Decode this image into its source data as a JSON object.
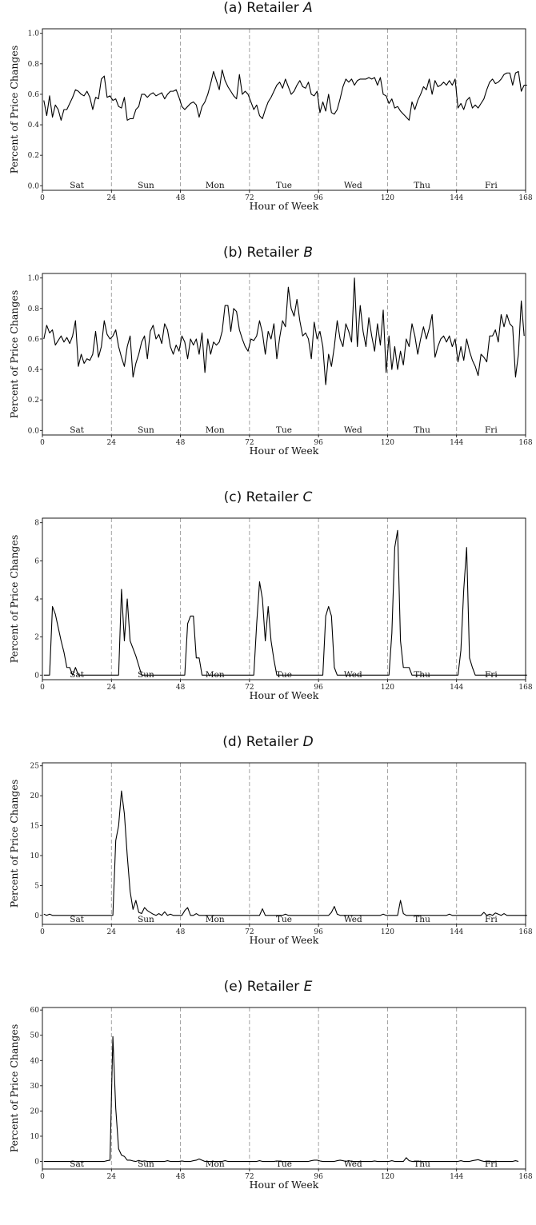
{
  "shared": {
    "ylabel": "Percent of Price Changes",
    "xlabel": "Hour of Week"
  },
  "chart_data": [
    {
      "type": "line",
      "title": "(a) Retailer ",
      "title_letter": "A",
      "xlabel": "Hour of Week",
      "ylabel": "Percent of Price Changes",
      "xlim": [
        0,
        168
      ],
      "ylim": [
        -0.03,
        1.03
      ],
      "xticks": [
        0,
        24,
        48,
        72,
        96,
        120,
        144,
        168
      ],
      "yticks": [
        0.0,
        0.2,
        0.4,
        0.6,
        0.8,
        1.0
      ],
      "ytick_labels": [
        "0.0",
        "0.2",
        "0.4",
        "0.6",
        "0.8",
        "1.0"
      ],
      "day_labels": [
        "Sat",
        "Sun",
        "Mon",
        "Tue",
        "Wed",
        "Thu",
        "Fri"
      ],
      "day_dividers": [
        24,
        48,
        72,
        96,
        120,
        144
      ],
      "grid": false,
      "values": [
        0.56,
        0.46,
        0.59,
        0.45,
        0.53,
        0.5,
        0.43,
        0.5,
        0.5,
        0.54,
        0.58,
        0.63,
        0.62,
        0.6,
        0.59,
        0.62,
        0.58,
        0.5,
        0.58,
        0.57,
        0.7,
        0.72,
        0.58,
        0.59,
        0.56,
        0.57,
        0.52,
        0.51,
        0.58,
        0.43,
        0.44,
        0.44,
        0.5,
        0.52,
        0.6,
        0.6,
        0.58,
        0.6,
        0.61,
        0.59,
        0.6,
        0.61,
        0.57,
        0.6,
        0.62,
        0.62,
        0.63,
        0.58,
        0.52,
        0.5,
        0.52,
        0.54,
        0.55,
        0.53,
        0.45,
        0.52,
        0.55,
        0.6,
        0.67,
        0.75,
        0.69,
        0.63,
        0.76,
        0.69,
        0.65,
        0.62,
        0.59,
        0.57,
        0.73,
        0.6,
        0.62,
        0.6,
        0.55,
        0.5,
        0.53,
        0.46,
        0.44,
        0.5,
        0.55,
        0.58,
        0.62,
        0.66,
        0.68,
        0.64,
        0.7,
        0.65,
        0.6,
        0.62,
        0.66,
        0.69,
        0.65,
        0.64,
        0.68,
        0.6,
        0.59,
        0.62,
        0.48,
        0.55,
        0.49,
        0.6,
        0.48,
        0.47,
        0.5,
        0.57,
        0.65,
        0.7,
        0.68,
        0.7,
        0.66,
        0.69,
        0.7,
        0.7,
        0.7,
        0.71,
        0.7,
        0.71,
        0.66,
        0.71,
        0.6,
        0.59,
        0.54,
        0.57,
        0.51,
        0.52,
        0.49,
        0.47,
        0.45,
        0.43,
        0.55,
        0.5,
        0.56,
        0.6,
        0.65,
        0.63,
        0.7,
        0.6,
        0.69,
        0.65,
        0.66,
        0.68,
        0.66,
        0.69,
        0.66,
        0.7,
        0.51,
        0.54,
        0.5,
        0.56,
        0.58,
        0.51,
        0.53,
        0.51,
        0.54,
        0.57,
        0.63,
        0.68,
        0.7,
        0.67,
        0.68,
        0.7,
        0.73,
        0.74,
        0.74,
        0.66,
        0.74,
        0.75,
        0.62,
        0.66,
        0.66
      ]
    },
    {
      "type": "line",
      "title": "(b) Retailer ",
      "title_letter": "B",
      "xlabel": "Hour of Week",
      "ylabel": "Percent of Price Changes",
      "xlim": [
        0,
        168
      ],
      "ylim": [
        -0.03,
        1.03
      ],
      "xticks": [
        0,
        24,
        48,
        72,
        96,
        120,
        144,
        168
      ],
      "yticks": [
        0.0,
        0.2,
        0.4,
        0.6,
        0.8,
        1.0
      ],
      "ytick_labels": [
        "0.0",
        "0.2",
        "0.4",
        "0.6",
        "0.8",
        "1.0"
      ],
      "day_labels": [
        "Sat",
        "Sun",
        "Mon",
        "Tue",
        "Wed",
        "Thu",
        "Fri"
      ],
      "day_dividers": [
        24,
        48,
        72,
        96,
        120,
        144
      ],
      "grid": false,
      "values": [
        0.6,
        0.69,
        0.64,
        0.66,
        0.56,
        0.59,
        0.62,
        0.58,
        0.61,
        0.57,
        0.62,
        0.72,
        0.42,
        0.5,
        0.44,
        0.47,
        0.46,
        0.5,
        0.65,
        0.48,
        0.55,
        0.72,
        0.63,
        0.6,
        0.62,
        0.66,
        0.55,
        0.48,
        0.42,
        0.55,
        0.62,
        0.35,
        0.44,
        0.5,
        0.58,
        0.62,
        0.47,
        0.65,
        0.69,
        0.6,
        0.63,
        0.57,
        0.7,
        0.66,
        0.55,
        0.5,
        0.56,
        0.52,
        0.62,
        0.58,
        0.47,
        0.6,
        0.56,
        0.6,
        0.5,
        0.64,
        0.38,
        0.6,
        0.5,
        0.58,
        0.56,
        0.58,
        0.65,
        0.82,
        0.82,
        0.65,
        0.8,
        0.78,
        0.66,
        0.6,
        0.55,
        0.52,
        0.6,
        0.59,
        0.62,
        0.72,
        0.64,
        0.5,
        0.65,
        0.6,
        0.7,
        0.47,
        0.61,
        0.72,
        0.68,
        0.94,
        0.8,
        0.75,
        0.86,
        0.72,
        0.62,
        0.64,
        0.6,
        0.47,
        0.71,
        0.6,
        0.65,
        0.55,
        0.3,
        0.5,
        0.42,
        0.55,
        0.72,
        0.6,
        0.55,
        0.7,
        0.65,
        0.58,
        1.0,
        0.55,
        0.82,
        0.65,
        0.55,
        0.74,
        0.62,
        0.52,
        0.7,
        0.56,
        0.79,
        0.38,
        0.62,
        0.4,
        0.55,
        0.4,
        0.52,
        0.43,
        0.6,
        0.55,
        0.7,
        0.62,
        0.5,
        0.6,
        0.68,
        0.6,
        0.67,
        0.76,
        0.48,
        0.55,
        0.6,
        0.62,
        0.58,
        0.62,
        0.55,
        0.6,
        0.45,
        0.55,
        0.46,
        0.6,
        0.52,
        0.46,
        0.42,
        0.36,
        0.5,
        0.48,
        0.45,
        0.62,
        0.62,
        0.66,
        0.58,
        0.76,
        0.68,
        0.76,
        0.7,
        0.68,
        0.35,
        0.5,
        0.85,
        0.62
      ]
    },
    {
      "type": "line",
      "title": "(c) Retailer ",
      "title_letter": "C",
      "xlabel": "Hour of Week",
      "ylabel": "Percent of Price Changes",
      "xlim": [
        0,
        168
      ],
      "ylim": [
        -0.24,
        8.24
      ],
      "xticks": [
        0,
        24,
        48,
        72,
        96,
        120,
        144,
        168
      ],
      "yticks": [
        0,
        2,
        4,
        6,
        8
      ],
      "ytick_labels": [
        "0",
        "2",
        "4",
        "6",
        "8"
      ],
      "day_labels": [
        "Sat",
        "Sun",
        "Mon",
        "Tue",
        "Wed",
        "Thu",
        "Fri"
      ],
      "day_dividers": [
        24,
        48,
        72,
        96,
        120,
        144
      ],
      "grid": false,
      "values": [
        0,
        0,
        0,
        3.6,
        3.2,
        2.5,
        1.8,
        1.2,
        0.4,
        0.4,
        0,
        0.4,
        0,
        0,
        0,
        0,
        0,
        0,
        0,
        0,
        0,
        0,
        0,
        0,
        0,
        0,
        0,
        4.5,
        1.8,
        4.0,
        1.8,
        1.4,
        1.0,
        0.5,
        0,
        0,
        0,
        0,
        0,
        0,
        0,
        0,
        0,
        0,
        0,
        0,
        0,
        0,
        0,
        0,
        2.7,
        3.1,
        3.1,
        0.9,
        0.9,
        0,
        0,
        0,
        0,
        0,
        0,
        0,
        0,
        0,
        0,
        0,
        0,
        0,
        0,
        0,
        0,
        0,
        0,
        0,
        2.7,
        4.9,
        4.0,
        1.8,
        3.6,
        1.8,
        0.8,
        0,
        0,
        0,
        0,
        0,
        0,
        0,
        0,
        0,
        0,
        0,
        0,
        0,
        0,
        0,
        0,
        0,
        3.1,
        3.6,
        3.1,
        0.4,
        0,
        0,
        0,
        0,
        0,
        0,
        0,
        0,
        0,
        0,
        0,
        0,
        0,
        0,
        0,
        0,
        0,
        0,
        0,
        2.2,
        6.7,
        7.6,
        1.8,
        0.4,
        0.4,
        0.4,
        0,
        0,
        0,
        0,
        0,
        0,
        0,
        0,
        0,
        0,
        0,
        0,
        0,
        0,
        0,
        0,
        0,
        1.3,
        4.5,
        6.7,
        0.9,
        0.4,
        0,
        0,
        0,
        0,
        0,
        0,
        0,
        0,
        0,
        0,
        0,
        0,
        0,
        0,
        0,
        0,
        0,
        0,
        0
      ]
    },
    {
      "type": "line",
      "title": "(d) Retailer ",
      "title_letter": "D",
      "xlabel": "Hour of Week",
      "ylabel": "Percent of Price Changes",
      "xlim": [
        0,
        168
      ],
      "ylim": [
        -1.5,
        25.5
      ],
      "xticks": [
        0,
        24,
        48,
        72,
        96,
        120,
        144,
        168
      ],
      "yticks": [
        0,
        5,
        10,
        15,
        20,
        25
      ],
      "ytick_labels": [
        "0",
        "5",
        "10",
        "15",
        "20",
        "25"
      ],
      "day_labels": [
        "Sat",
        "Sun",
        "Mon",
        "Tue",
        "Wed",
        "Thu",
        "Fri"
      ],
      "day_dividers": [
        24,
        48,
        72,
        96,
        120,
        144
      ],
      "grid": false,
      "values": [
        0.2,
        0,
        0.2,
        0,
        0,
        0,
        0,
        0,
        0,
        0,
        0,
        0,
        0,
        0,
        0,
        0,
        0,
        0,
        0,
        0,
        0,
        0,
        0,
        0,
        0,
        12.5,
        15,
        20.8,
        17,
        10,
        4,
        1,
        2.5,
        0.5,
        0.3,
        1.3,
        0.8,
        0.5,
        0.2,
        0,
        0.3,
        0,
        0.6,
        0,
        0.2,
        0,
        0,
        0,
        0,
        0.8,
        1.3,
        0,
        0,
        0.3,
        0,
        0,
        0,
        0,
        0,
        0,
        0,
        0,
        0,
        0,
        0,
        0,
        0,
        0,
        0,
        0,
        0,
        0,
        0,
        0,
        0,
        0,
        1.1,
        0,
        0,
        0,
        0,
        0,
        0,
        0,
        0.2,
        0,
        0,
        0,
        0,
        0,
        0,
        0,
        0,
        0,
        0,
        0,
        0,
        0,
        0,
        0,
        0.5,
        1.5,
        0.2,
        0,
        0,
        0,
        0,
        0,
        0,
        0,
        0,
        0,
        0,
        0,
        0,
        0,
        0,
        0,
        0.2,
        0,
        0,
        0,
        0,
        0,
        2.5,
        0.3,
        0,
        0,
        0,
        0,
        0,
        0,
        0,
        0,
        0,
        0,
        0,
        0,
        0,
        0,
        0,
        0.2,
        0,
        0,
        0,
        0,
        0,
        0,
        0,
        0,
        0,
        0,
        0,
        0.5,
        0,
        0.2,
        0,
        0.4,
        0.2,
        0,
        0.3,
        0,
        0,
        0,
        0,
        0,
        0,
        0,
        0
      ]
    },
    {
      "type": "line",
      "title": "(e) Retailer ",
      "title_letter": "E",
      "xlabel": "Hour of Week",
      "ylabel": "Percent of Price Changes",
      "xlim": [
        0,
        168
      ],
      "ylim": [
        -3,
        61
      ],
      "xticks": [
        0,
        24,
        48,
        72,
        96,
        120,
        144,
        168
      ],
      "yticks": [
        0,
        10,
        20,
        30,
        40,
        50,
        60
      ],
      "ytick_labels": [
        "0",
        "10",
        "20",
        "30",
        "40",
        "50",
        "60"
      ],
      "day_labels": [
        "Sat",
        "Sun",
        "Mon",
        "Tue",
        "Wed",
        "Thu",
        "Fri"
      ],
      "day_dividers": [
        24,
        48,
        72,
        96,
        120,
        144
      ],
      "grid": false,
      "values": [
        0,
        0,
        0,
        0,
        0,
        0,
        0,
        0,
        0,
        0,
        0,
        0,
        0,
        0,
        0,
        0,
        0,
        0,
        0,
        0,
        0,
        0,
        0.3,
        0.5,
        49.5,
        21,
        5,
        2.5,
        2,
        0.5,
        0.5,
        0.2,
        0,
        0.4,
        0,
        0.2,
        0,
        0,
        0,
        0,
        0,
        0,
        0,
        0.3,
        0,
        0,
        0,
        0,
        0.2,
        0,
        0,
        0,
        0.3,
        0.5,
        1,
        0.5,
        0,
        0,
        0,
        0,
        0,
        0,
        0,
        0.3,
        0,
        0,
        0,
        0,
        0,
        0,
        0,
        0,
        0,
        0,
        0,
        0.3,
        0,
        0,
        0,
        0,
        0,
        0.2,
        0,
        0,
        0,
        0,
        0,
        0,
        0,
        0,
        0,
        0,
        0,
        0.3,
        0.5,
        0.5,
        0.2,
        0,
        0,
        0,
        0,
        0,
        0.3,
        0.5,
        0.3,
        0,
        0.3,
        0,
        0,
        0,
        0,
        0,
        0,
        0,
        0,
        0.2,
        0,
        0,
        0,
        0,
        0,
        0.3,
        0,
        0,
        0,
        0,
        1.5,
        0.3,
        0,
        0,
        0,
        0,
        0,
        0,
        0,
        0,
        0,
        0,
        0,
        0,
        0,
        0,
        0,
        0,
        0,
        0.3,
        0,
        0,
        0,
        0.3,
        0.5,
        0.7,
        0.3,
        0,
        0,
        0,
        0,
        0,
        0,
        0,
        0,
        0,
        0,
        0,
        0.3,
        0
      ]
    }
  ]
}
